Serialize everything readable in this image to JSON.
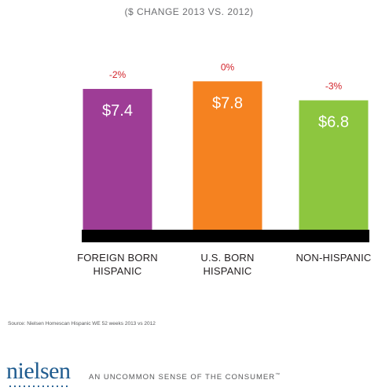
{
  "chart_data": {
    "type": "bar",
    "subtitle": "($ CHANGE 2013 VS. 2012)",
    "categories": [
      [
        "FOREIGN BORN",
        "HISPANIC"
      ],
      [
        "U.S. BORN",
        "HISPANIC"
      ],
      [
        "NON-HISPANIC"
      ]
    ],
    "values": [
      7.4,
      7.8,
      6.8
    ],
    "value_labels": [
      "$7.4",
      "$7.8",
      "$6.8"
    ],
    "change_labels": [
      "-2%",
      "0%",
      "-3%"
    ],
    "colors": [
      "#9e3d96",
      "#f58220",
      "#8dc63f"
    ],
    "change_color": "#d2232a",
    "ylim": [
      0,
      8.6
    ],
    "grid": false
  },
  "source": "Source: Nielsen Homescan Hispanic WE 52 weeks 2013 vs 2012",
  "brand": {
    "logo": "nielsen",
    "tagline": "AN UNCOMMON SENSE OF THE CONSUMER",
    "tagline_mark": "™",
    "color": "#1e5b8f"
  }
}
